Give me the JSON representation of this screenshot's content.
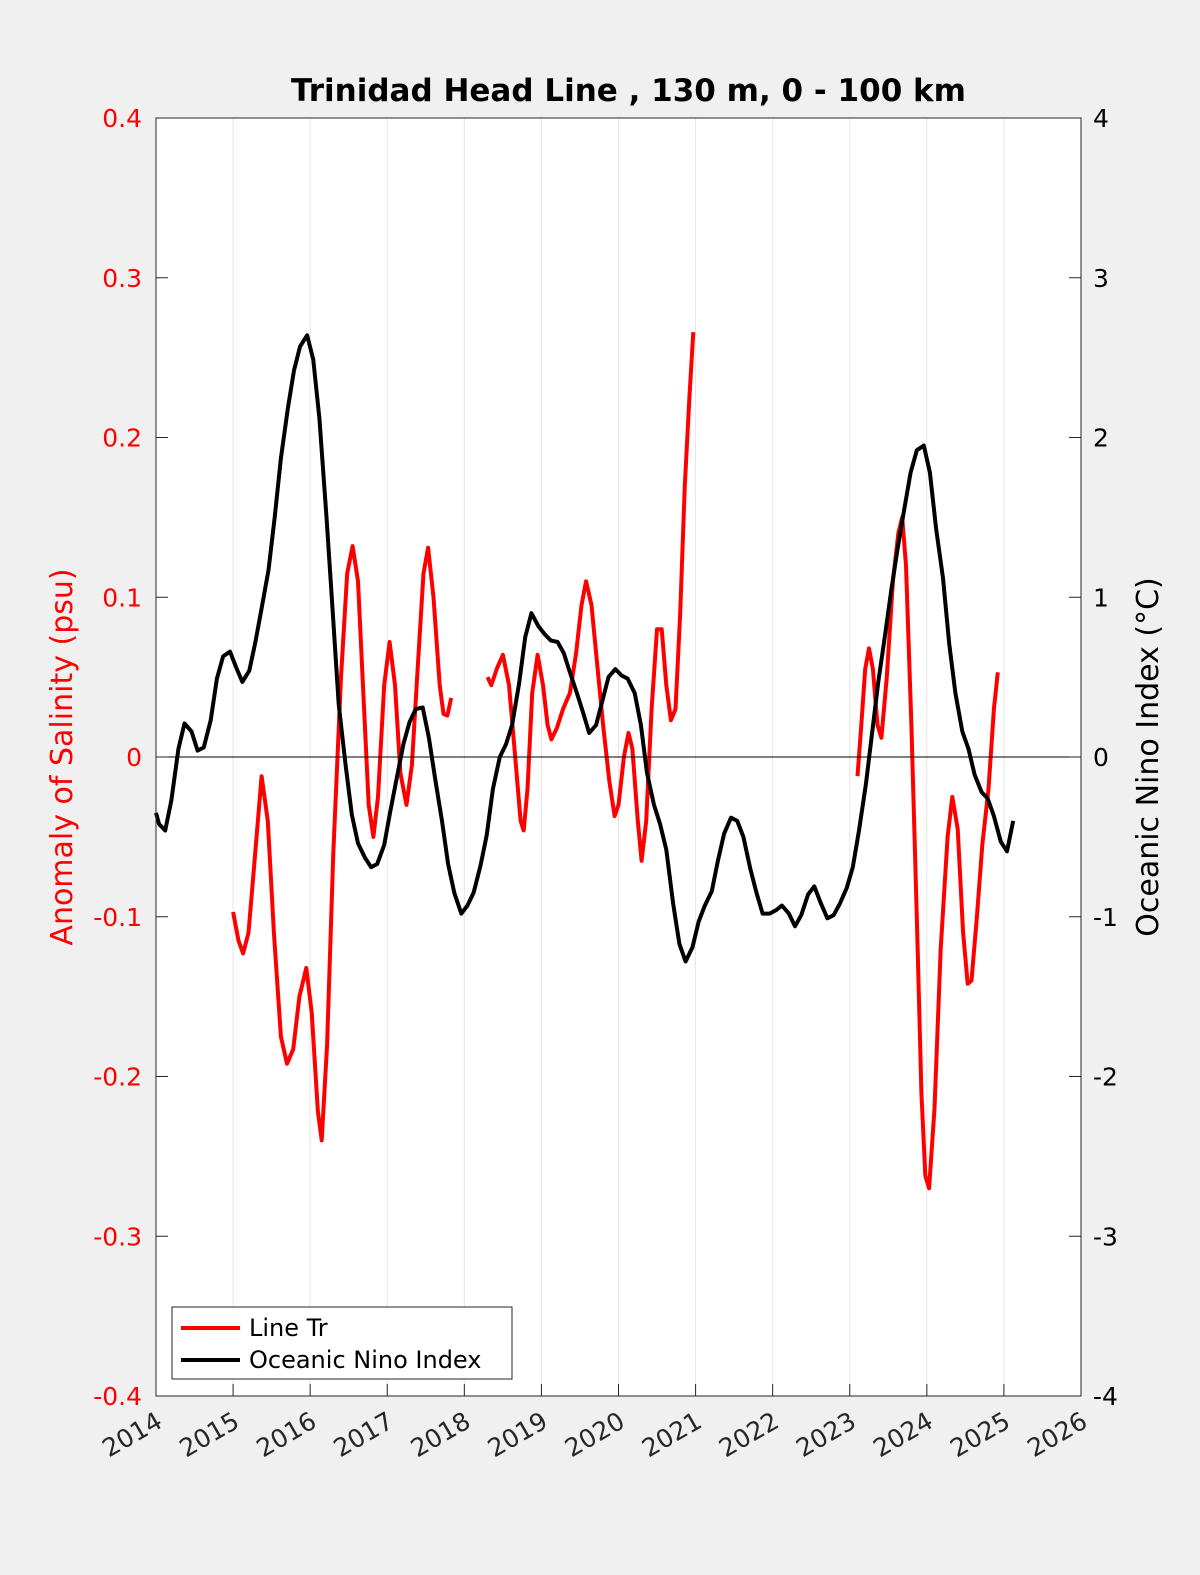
{
  "colors": {
    "background": "#f0f0f0",
    "plot_background": "#ffffff",
    "salinity": "#ff0000",
    "oni": "#000000",
    "grid": "#e6e6e6"
  },
  "chart_data": {
    "type": "line",
    "title": "Trinidad Head Line , 130 m, 0 - 100 km",
    "xlim": [
      2014,
      2026
    ],
    "x_ticks": [
      2014,
      2015,
      2016,
      2017,
      2018,
      2019,
      2020,
      2021,
      2022,
      2023,
      2024,
      2025,
      2026
    ],
    "x_tick_labels": [
      "2014",
      "2015",
      "2016",
      "2017",
      "2018",
      "2019",
      "2020",
      "2021",
      "2022",
      "2023",
      "2024",
      "2025",
      "2026"
    ],
    "left_axis": {
      "label": "Anomaly of Salinity (psu)",
      "ylim": [
        -0.4,
        0.4
      ],
      "ticks": [
        -0.4,
        -0.3,
        -0.2,
        -0.1,
        0,
        0.1,
        0.2,
        0.3,
        0.4
      ],
      "tick_labels": [
        "-0.4",
        "-0.3",
        "-0.2",
        "-0.1",
        "0",
        "0.1",
        "0.2",
        "0.3",
        "0.4"
      ]
    },
    "right_axis": {
      "label": "Oceanic Nino Index (°C)",
      "ylim": [
        -4,
        4
      ],
      "ticks": [
        -4,
        -3,
        -2,
        -1,
        0,
        1,
        2,
        3,
        4
      ],
      "tick_labels": [
        "-4",
        "-3",
        "-2",
        "-1",
        "0",
        "1",
        "2",
        "3",
        "4"
      ]
    },
    "grid": "vertical",
    "legend_position": "bottom-left",
    "series": [
      {
        "name": "Line Tr",
        "axis": "left",
        "color": "#ff0000",
        "segments": [
          [
            [
              2015.0,
              -0.097
            ],
            [
              2015.07,
              -0.115
            ],
            [
              2015.13,
              -0.123
            ],
            [
              2015.2,
              -0.11
            ],
            [
              2015.27,
              -0.07
            ],
            [
              2015.37,
              -0.012
            ],
            [
              2015.45,
              -0.04
            ],
            [
              2015.53,
              -0.11
            ],
            [
              2015.62,
              -0.175
            ],
            [
              2015.7,
              -0.192
            ],
            [
              2015.78,
              -0.183
            ],
            [
              2015.86,
              -0.15
            ],
            [
              2015.95,
              -0.132
            ],
            [
              2016.02,
              -0.16
            ],
            [
              2016.1,
              -0.222
            ],
            [
              2016.15,
              -0.24
            ],
            [
              2016.22,
              -0.18
            ],
            [
              2016.3,
              -0.06
            ],
            [
              2016.4,
              0.05
            ],
            [
              2016.48,
              0.115
            ],
            [
              2016.55,
              0.132
            ],
            [
              2016.62,
              0.11
            ],
            [
              2016.7,
              0.03
            ],
            [
              2016.76,
              -0.03
            ],
            [
              2016.82,
              -0.05
            ],
            [
              2016.88,
              -0.025
            ],
            [
              2016.96,
              0.045
            ],
            [
              2017.03,
              0.072
            ],
            [
              2017.1,
              0.045
            ],
            [
              2017.17,
              -0.01
            ],
            [
              2017.25,
              -0.03
            ],
            [
              2017.32,
              -0.005
            ],
            [
              2017.4,
              0.06
            ],
            [
              2017.47,
              0.115
            ],
            [
              2017.53,
              0.131
            ],
            [
              2017.6,
              0.1
            ],
            [
              2017.68,
              0.045
            ],
            [
              2017.73,
              0.027
            ],
            [
              2017.78,
              0.026
            ],
            [
              2017.83,
              0.037
            ]
          ],
          [
            [
              2018.3,
              0.05
            ],
            [
              2018.35,
              0.045
            ],
            [
              2018.42,
              0.055
            ],
            [
              2018.5,
              0.064
            ],
            [
              2018.58,
              0.045
            ],
            [
              2018.66,
              0.0
            ],
            [
              2018.73,
              -0.04
            ],
            [
              2018.77,
              -0.046
            ],
            [
              2018.82,
              -0.02
            ],
            [
              2018.88,
              0.04
            ],
            [
              2018.95,
              0.064
            ],
            [
              2019.02,
              0.045
            ],
            [
              2019.08,
              0.02
            ],
            [
              2019.13,
              0.011
            ],
            [
              2019.2,
              0.018
            ],
            [
              2019.28,
              0.03
            ],
            [
              2019.37,
              0.04
            ],
            [
              2019.45,
              0.065
            ],
            [
              2019.52,
              0.095
            ],
            [
              2019.58,
              0.11
            ],
            [
              2019.65,
              0.095
            ],
            [
              2019.72,
              0.06
            ],
            [
              2019.8,
              0.02
            ],
            [
              2019.88,
              -0.015
            ],
            [
              2019.95,
              -0.037
            ],
            [
              2020.0,
              -0.03
            ],
            [
              2020.07,
              0.0
            ],
            [
              2020.13,
              0.015
            ],
            [
              2020.18,
              0.005
            ],
            [
              2020.25,
              -0.04
            ],
            [
              2020.3,
              -0.065
            ],
            [
              2020.36,
              -0.04
            ],
            [
              2020.43,
              0.03
            ],
            [
              2020.5,
              0.08
            ],
            [
              2020.56,
              0.08
            ],
            [
              2020.62,
              0.045
            ],
            [
              2020.68,
              0.023
            ],
            [
              2020.74,
              0.03
            ],
            [
              2020.8,
              0.09
            ],
            [
              2020.86,
              0.17
            ],
            [
              2020.92,
              0.225
            ],
            [
              2020.97,
              0.266
            ]
          ],
          [
            [
              2023.1,
              -0.012
            ],
            [
              2023.15,
              0.02
            ],
            [
              2023.2,
              0.055
            ],
            [
              2023.25,
              0.068
            ],
            [
              2023.3,
              0.055
            ],
            [
              2023.36,
              0.02
            ],
            [
              2023.41,
              0.012
            ],
            [
              2023.48,
              0.05
            ],
            [
              2023.56,
              0.11
            ],
            [
              2023.63,
              0.14
            ],
            [
              2023.68,
              0.15
            ],
            [
              2023.73,
              0.12
            ],
            [
              2023.8,
              0.02
            ],
            [
              2023.87,
              -0.1
            ],
            [
              2023.93,
              -0.21
            ],
            [
              2023.98,
              -0.262
            ],
            [
              2024.03,
              -0.27
            ],
            [
              2024.1,
              -0.22
            ],
            [
              2024.18,
              -0.12
            ],
            [
              2024.27,
              -0.05
            ],
            [
              2024.33,
              -0.025
            ],
            [
              2024.4,
              -0.045
            ],
            [
              2024.47,
              -0.11
            ],
            [
              2024.53,
              -0.142
            ],
            [
              2024.58,
              -0.14
            ],
            [
              2024.65,
              -0.1
            ],
            [
              2024.72,
              -0.055
            ],
            [
              2024.8,
              -0.02
            ],
            [
              2024.87,
              0.03
            ],
            [
              2024.92,
              0.053
            ]
          ]
        ]
      },
      {
        "name": "Oceanic Nino Index",
        "axis": "right",
        "color": "#000000",
        "points": [
          [
            2014.0,
            -0.35
          ],
          [
            2014.04,
            -0.42
          ],
          [
            2014.12,
            -0.46
          ],
          [
            2014.2,
            -0.27
          ],
          [
            2014.29,
            0.05
          ],
          [
            2014.37,
            0.21
          ],
          [
            2014.46,
            0.16
          ],
          [
            2014.54,
            0.04
          ],
          [
            2014.62,
            0.06
          ],
          [
            2014.71,
            0.23
          ],
          [
            2014.79,
            0.49
          ],
          [
            2014.87,
            0.63
          ],
          [
            2014.96,
            0.66
          ],
          [
            2015.04,
            0.56
          ],
          [
            2015.12,
            0.47
          ],
          [
            2015.21,
            0.54
          ],
          [
            2015.29,
            0.72
          ],
          [
            2015.37,
            0.93
          ],
          [
            2015.46,
            1.17
          ],
          [
            2015.54,
            1.5
          ],
          [
            2015.62,
            1.87
          ],
          [
            2015.71,
            2.18
          ],
          [
            2015.79,
            2.42
          ],
          [
            2015.87,
            2.57
          ],
          [
            2015.96,
            2.64
          ],
          [
            2016.04,
            2.49
          ],
          [
            2016.12,
            2.12
          ],
          [
            2016.21,
            1.51
          ],
          [
            2016.29,
            0.93
          ],
          [
            2016.37,
            0.33
          ],
          [
            2016.46,
            -0.05
          ],
          [
            2016.54,
            -0.36
          ],
          [
            2016.62,
            -0.54
          ],
          [
            2016.71,
            -0.63
          ],
          [
            2016.79,
            -0.69
          ],
          [
            2016.87,
            -0.67
          ],
          [
            2016.96,
            -0.55
          ],
          [
            2017.04,
            -0.34
          ],
          [
            2017.12,
            -0.14
          ],
          [
            2017.21,
            0.08
          ],
          [
            2017.29,
            0.22
          ],
          [
            2017.37,
            0.3
          ],
          [
            2017.46,
            0.31
          ],
          [
            2017.54,
            0.12
          ],
          [
            2017.62,
            -0.13
          ],
          [
            2017.71,
            -0.4
          ],
          [
            2017.79,
            -0.67
          ],
          [
            2017.87,
            -0.85
          ],
          [
            2017.96,
            -0.98
          ],
          [
            2018.04,
            -0.93
          ],
          [
            2018.12,
            -0.85
          ],
          [
            2018.21,
            -0.68
          ],
          [
            2018.29,
            -0.49
          ],
          [
            2018.37,
            -0.2
          ],
          [
            2018.46,
            0.0
          ],
          [
            2018.54,
            0.08
          ],
          [
            2018.62,
            0.2
          ],
          [
            2018.71,
            0.46
          ],
          [
            2018.79,
            0.75
          ],
          [
            2018.87,
            0.9
          ],
          [
            2018.96,
            0.82
          ],
          [
            2019.04,
            0.77
          ],
          [
            2019.12,
            0.73
          ],
          [
            2019.21,
            0.72
          ],
          [
            2019.29,
            0.65
          ],
          [
            2019.37,
            0.53
          ],
          [
            2019.46,
            0.4
          ],
          [
            2019.54,
            0.28
          ],
          [
            2019.62,
            0.15
          ],
          [
            2019.71,
            0.2
          ],
          [
            2019.79,
            0.35
          ],
          [
            2019.87,
            0.5
          ],
          [
            2019.96,
            0.55
          ],
          [
            2020.04,
            0.51
          ],
          [
            2020.12,
            0.49
          ],
          [
            2020.21,
            0.4
          ],
          [
            2020.29,
            0.2
          ],
          [
            2020.37,
            -0.1
          ],
          [
            2020.46,
            -0.3
          ],
          [
            2020.54,
            -0.42
          ],
          [
            2020.62,
            -0.58
          ],
          [
            2020.71,
            -0.92
          ],
          [
            2020.79,
            -1.17
          ],
          [
            2020.87,
            -1.28
          ],
          [
            2020.96,
            -1.19
          ],
          [
            2021.04,
            -1.03
          ],
          [
            2021.12,
            -0.93
          ],
          [
            2021.21,
            -0.84
          ],
          [
            2021.29,
            -0.65
          ],
          [
            2021.37,
            -0.48
          ],
          [
            2021.46,
            -0.38
          ],
          [
            2021.54,
            -0.4
          ],
          [
            2021.62,
            -0.5
          ],
          [
            2021.71,
            -0.7
          ],
          [
            2021.79,
            -0.85
          ],
          [
            2021.87,
            -0.98
          ],
          [
            2021.96,
            -0.98
          ],
          [
            2022.04,
            -0.96
          ],
          [
            2022.12,
            -0.93
          ],
          [
            2022.21,
            -0.98
          ],
          [
            2022.29,
            -1.06
          ],
          [
            2022.37,
            -0.99
          ],
          [
            2022.46,
            -0.86
          ],
          [
            2022.54,
            -0.81
          ],
          [
            2022.62,
            -0.91
          ],
          [
            2022.71,
            -1.01
          ],
          [
            2022.79,
            -0.99
          ],
          [
            2022.87,
            -0.92
          ],
          [
            2022.96,
            -0.82
          ],
          [
            2023.04,
            -0.69
          ],
          [
            2023.12,
            -0.46
          ],
          [
            2023.21,
            -0.17
          ],
          [
            2023.29,
            0.15
          ],
          [
            2023.37,
            0.47
          ],
          [
            2023.46,
            0.77
          ],
          [
            2023.54,
            1.05
          ],
          [
            2023.62,
            1.3
          ],
          [
            2023.71,
            1.56
          ],
          [
            2023.79,
            1.78
          ],
          [
            2023.87,
            1.92
          ],
          [
            2023.96,
            1.95
          ],
          [
            2024.04,
            1.78
          ],
          [
            2024.12,
            1.43
          ],
          [
            2024.21,
            1.12
          ],
          [
            2024.29,
            0.71
          ],
          [
            2024.37,
            0.4
          ],
          [
            2024.46,
            0.16
          ],
          [
            2024.54,
            0.05
          ],
          [
            2024.62,
            -0.11
          ],
          [
            2024.71,
            -0.22
          ],
          [
            2024.79,
            -0.26
          ],
          [
            2024.87,
            -0.37
          ],
          [
            2024.96,
            -0.53
          ],
          [
            2025.04,
            -0.59
          ],
          [
            2025.12,
            -0.4
          ]
        ]
      }
    ]
  }
}
